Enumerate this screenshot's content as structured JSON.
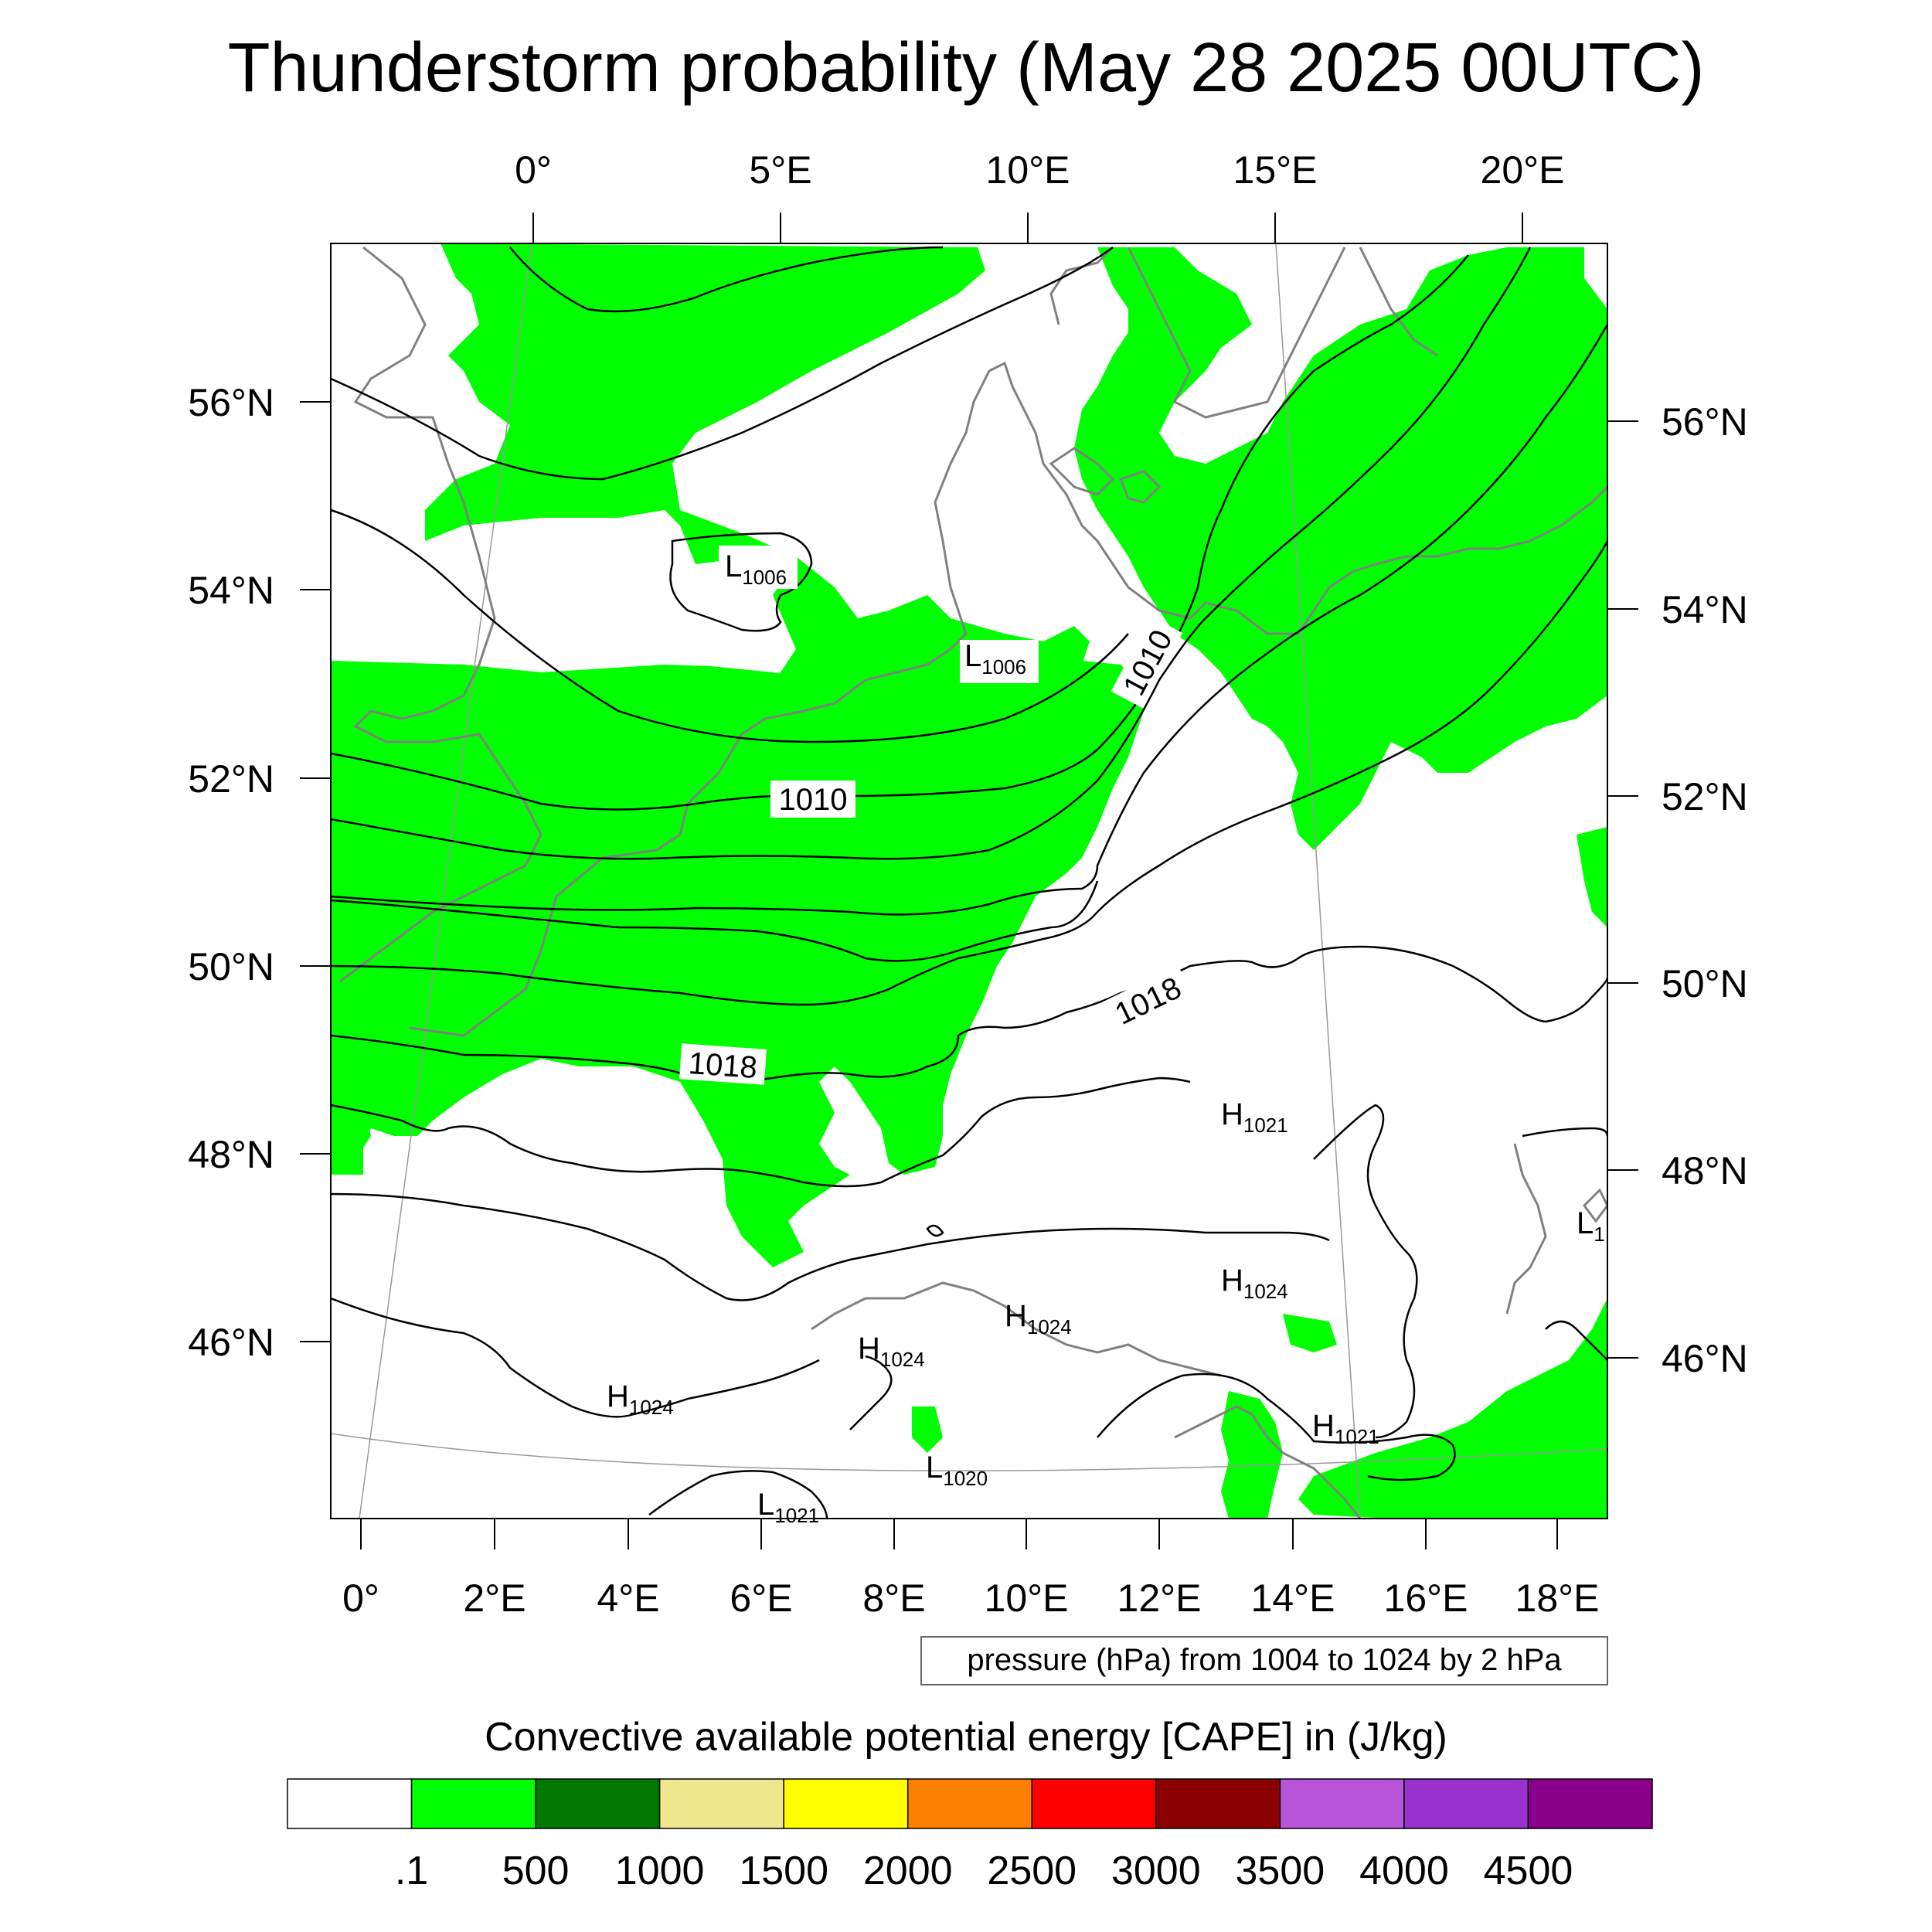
{
  "title": "Thunderstorm probability (May 28 2025 00UTC)",
  "map": {
    "top_lon_labels": [
      "0°",
      "5°E",
      "10°E",
      "15°E",
      "20°E"
    ],
    "bottom_lon_labels": [
      "0°",
      "2°E",
      "4°E",
      "6°E",
      "8°E",
      "10°E",
      "12°E",
      "14°E",
      "16°E",
      "18°E"
    ],
    "left_lat_labels": [
      "56°N",
      "54°N",
      "52°N",
      "50°N",
      "48°N",
      "46°N"
    ],
    "right_lat_labels": [
      "56°N",
      "54°N",
      "52°N",
      "50°N",
      "48°N",
      "46°N"
    ],
    "isobar_labels": [
      "1010",
      "1010",
      "1018",
      "1018"
    ],
    "pressure_centers": [
      {
        "letter": "L",
        "value": "1006"
      },
      {
        "letter": "L",
        "value": "1006"
      },
      {
        "letter": "H",
        "value": "1021"
      },
      {
        "letter": "H",
        "value": "1024"
      },
      {
        "letter": "H",
        "value": "1024"
      },
      {
        "letter": "H",
        "value": "1024"
      },
      {
        "letter": "H",
        "value": "1024"
      },
      {
        "letter": "H",
        "value": "1021"
      },
      {
        "letter": "L",
        "value": "1020"
      },
      {
        "letter": "L",
        "value": "1021"
      },
      {
        "letter": "L",
        "value": "1"
      }
    ],
    "colors": {
      "cape_fill": "#00ff00",
      "isobar": "#000000",
      "coastline": "#808080",
      "graticule": "#999999",
      "frame": "#000000"
    }
  },
  "contour_note": "pressure (hPa) from 1004 to 1024 by 2 hPa",
  "colorbar": {
    "title": "Convective available potential energy [CAPE] in (J/kg)",
    "colors": [
      "#ffffff",
      "#00ff00",
      "#007800",
      "#f0e68c",
      "#ffff00",
      "#ff8000",
      "#ff0000",
      "#8b0000",
      "#b854d8",
      "#9932cc",
      "#8b008b"
    ],
    "labels": [
      ".1",
      "500",
      "1000",
      "1500",
      "2000",
      "2500",
      "3000",
      "3500",
      "4000",
      "4500"
    ]
  }
}
